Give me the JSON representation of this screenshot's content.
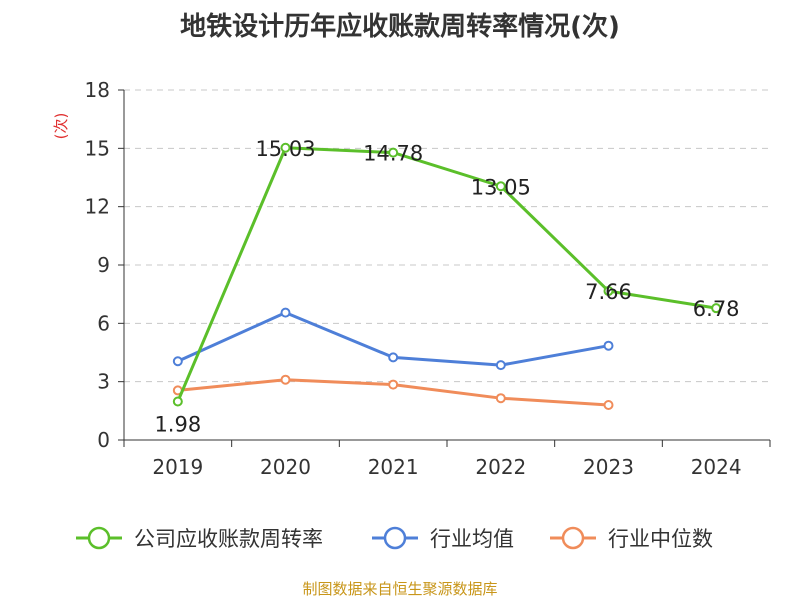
{
  "title": "地铁设计历年应收账款周转率情况(次)",
  "source": "制图数据来自恒生聚源数据库",
  "chart_data": {
    "type": "line",
    "title": "地铁设计历年应收账款周转率情况(次)",
    "xlabel": "",
    "ylabel": "(次)",
    "ylim": [
      0,
      18
    ],
    "yticks": [
      0,
      3,
      6,
      9,
      12,
      15,
      18
    ],
    "categories": [
      "2019",
      "2020",
      "2021",
      "2022",
      "2023",
      "2024"
    ],
    "grid": true,
    "legend_position": "bottom",
    "series": [
      {
        "name": "公司应收账款周转率",
        "color": "#5bbf2a",
        "values": [
          1.98,
          15.03,
          14.78,
          13.05,
          7.66,
          6.78
        ],
        "labels": [
          "1.98",
          "15.03",
          "14.78",
          "13.05",
          "7.66",
          "6.78"
        ]
      },
      {
        "name": "行业均值",
        "color": "#4e7fd8",
        "values": [
          4.05,
          6.55,
          4.25,
          3.85,
          4.85,
          null
        ]
      },
      {
        "name": "行业中位数",
        "color": "#f08c5a",
        "values": [
          2.55,
          3.1,
          2.85,
          2.15,
          1.8,
          null
        ]
      }
    ]
  }
}
